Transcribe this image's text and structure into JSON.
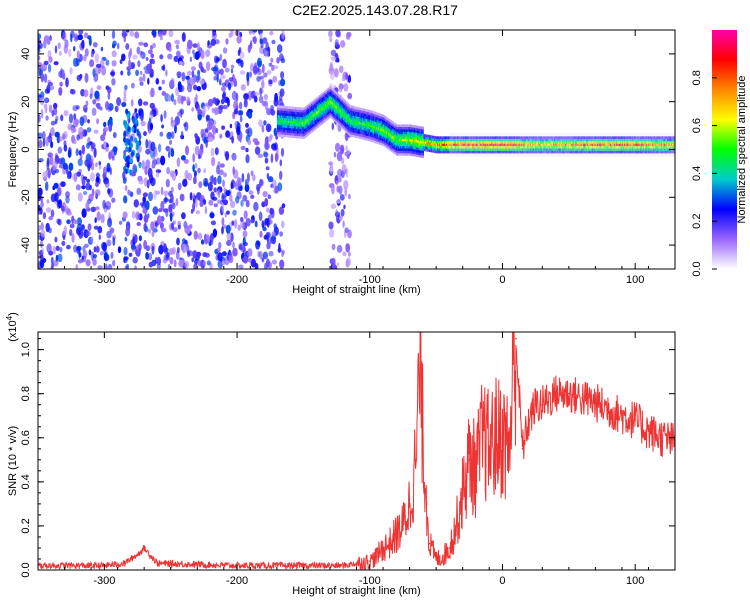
{
  "title": "C2E2.2025.143.07.28.R17",
  "chart_data": [
    {
      "type": "heatmap",
      "xlabel": "Height of straight line (km)",
      "ylabel": "Frequency (Hz)",
      "xlim": [
        -350,
        130
      ],
      "ylim": [
        -50,
        50
      ],
      "xticks": [
        -300,
        -200,
        -100,
        0,
        100
      ],
      "yticks": [
        -40,
        -20,
        0,
        20,
        40
      ],
      "colorbar": {
        "label": "Normalized spectral amplitude",
        "range": [
          0,
          1
        ],
        "ticks": [
          "0.0",
          "0.2",
          "0.4",
          "0.6",
          "0.8"
        ],
        "colors": [
          "#ffffff",
          "#9966ff",
          "#0000ff",
          "#00cccc",
          "#00ff00",
          "#ffff00",
          "#ff8800",
          "#ff0000",
          "#ff00aa"
        ]
      },
      "ridge": {
        "x": [
          -170,
          -150,
          -130,
          -115,
          -100,
          -90,
          -80,
          -70,
          -50,
          -30,
          0,
          30,
          60,
          90,
          130
        ],
        "frequency": [
          12,
          11,
          20,
          12,
          10,
          8,
          4,
          4,
          2,
          2,
          2,
          2,
          2,
          2,
          2
        ],
        "amplitude": [
          0.45,
          0.5,
          0.55,
          0.5,
          0.5,
          0.55,
          0.55,
          0.6,
          0.75,
          0.85,
          0.9,
          0.7,
          0.8,
          0.85,
          0.7
        ]
      },
      "scatter_regions": [
        {
          "x": [
            -350,
            -165
          ],
          "frequency": [
            -50,
            50
          ],
          "amplitude": 0.25
        },
        {
          "x": [
            -130,
            -115
          ],
          "frequency": [
            -50,
            50
          ],
          "amplitude": 0.2
        }
      ]
    },
    {
      "type": "line",
      "xlabel": "Height of straight line (km)",
      "ylabel": "SNR (10 * v/v)",
      "y_scale_label": "(x10",
      "y_scale_exponent": "4",
      "xlim": [
        -350,
        130
      ],
      "ylim": [
        0,
        1.08
      ],
      "xticks": [
        -300,
        -200,
        -100,
        0,
        100
      ],
      "yticks": [
        "0.0",
        "0.2",
        "0.4",
        "0.6",
        "0.8",
        "1.0"
      ],
      "series": [
        {
          "color": "#ee3333",
          "x": [
            -350,
            -300,
            -285,
            -275,
            -270,
            -260,
            -200,
            -160,
            -120,
            -100,
            -95,
            -90,
            -85,
            -80,
            -75,
            -70,
            -65,
            -62,
            -60,
            -57,
            -55,
            -50,
            -45,
            -40,
            -35,
            -30,
            -25,
            -20,
            -15,
            -10,
            -5,
            0,
            5,
            10,
            15,
            20,
            25,
            30,
            40,
            50,
            60,
            70,
            80,
            90,
            100,
            110,
            120,
            130
          ],
          "values": [
            0.02,
            0.02,
            0.03,
            0.07,
            0.1,
            0.03,
            0.02,
            0.02,
            0.02,
            0.04,
            0.06,
            0.1,
            0.12,
            0.16,
            0.2,
            0.3,
            0.5,
            1.0,
            0.6,
            0.3,
            0.12,
            0.05,
            0.06,
            0.1,
            0.2,
            0.35,
            0.5,
            0.45,
            0.6,
            0.55,
            0.6,
            0.6,
            0.55,
            1.05,
            0.55,
            0.68,
            0.75,
            0.75,
            0.8,
            0.8,
            0.78,
            0.76,
            0.73,
            0.7,
            0.68,
            0.63,
            0.6,
            0.58
          ]
        }
      ]
    }
  ]
}
